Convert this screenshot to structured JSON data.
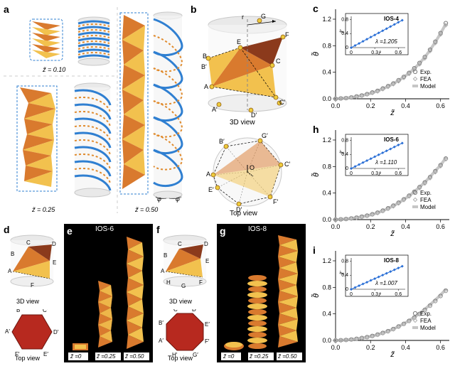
{
  "figure_width": 640,
  "figure_height": 515,
  "colors": {
    "origami_orange": "#d97a2e",
    "origami_yellow": "#f2c14e",
    "origami_dark": "#8b3a1c",
    "helix_blue": "#2f7fd1",
    "helix_orange_dash": "#e08a2b",
    "cylinder_fill": "#e9e9e9",
    "cylinder_edge": "#c8c8c8",
    "chart_exp": "#7a7a7a",
    "chart_fea": "#b0b0b0",
    "chart_model": "#b8b8b8",
    "chart_inset_blue": "#2a6fd6",
    "black": "#000000",
    "white": "#ffffff",
    "divider": "#cccccc",
    "polygon_fill": "#b7291f",
    "node_fill": "#eecb3c",
    "node_stroke": "#8c5a14"
  },
  "panels": {
    "a": {
      "label": "a",
      "captions": {
        "z010": "z̃ = 0.10",
        "z025": "z̃ = 0.25",
        "z050": "z̃ = 0.50"
      },
      "angles": {
        "phi": "φ",
        "phiprime": "φ′"
      }
    },
    "b": {
      "label": "b",
      "view3d": "3D view",
      "topview": "Top view",
      "radius_label": "r",
      "vertex_labels": [
        "A",
        "B",
        "C",
        "D",
        "E",
        "F",
        "G",
        "A′",
        "B′",
        "C′",
        "D′"
      ],
      "top_labels": [
        "A",
        "B′",
        "C′",
        "D′",
        "E′",
        "F′",
        "G′"
      ]
    },
    "d": {
      "label": "d",
      "view3d": "3D view",
      "topview": "Top view",
      "vertex_labels": [
        "A",
        "B",
        "C",
        "D",
        "E",
        "F"
      ],
      "prime_labels": [
        "A′",
        "B′",
        "C′",
        "D′",
        "E′",
        "F′"
      ]
    },
    "e": {
      "label": "e",
      "title": "IOS-6",
      "ticks": [
        "z̃ =0",
        "z̃ =0.25",
        "z̃ =0.50"
      ]
    },
    "f": {
      "label": "f",
      "view3d": "3D view",
      "topview": "Top view",
      "vertex_labels": [
        "A",
        "B",
        "C",
        "D",
        "E",
        "F",
        "G",
        "H"
      ],
      "prime_labels": [
        "A′",
        "B′",
        "C′",
        "D′",
        "E′",
        "F′",
        "G′",
        "H′"
      ]
    },
    "g": {
      "label": "g",
      "title": "IOS-8",
      "ticks": [
        "z̃ =0",
        "z̃ =0.25",
        "z̃ =0.50"
      ]
    },
    "c": {
      "label": "c",
      "chart": {
        "type": "scatter-with-model",
        "title": "IOS-4",
        "xlabel": "z̃",
        "ylabel": "θ̃",
        "xlim": [
          0,
          0.65
        ],
        "xticks": [
          0,
          0.2,
          0.4,
          0.6
        ],
        "ylim": [
          0,
          1.35
        ],
        "yticks": [
          0,
          0.4,
          0.8,
          1.2
        ],
        "x": [
          0,
          0.03,
          0.06,
          0.09,
          0.12,
          0.15,
          0.18,
          0.21,
          0.24,
          0.27,
          0.3,
          0.33,
          0.36,
          0.39,
          0.42,
          0.45,
          0.48,
          0.51,
          0.54,
          0.57,
          0.6,
          0.63
        ],
        "exp_y": [
          0,
          0.005,
          0.01,
          0.02,
          0.035,
          0.05,
          0.07,
          0.095,
          0.12,
          0.155,
          0.19,
          0.23,
          0.28,
          0.33,
          0.39,
          0.46,
          0.54,
          0.63,
          0.74,
          0.86,
          0.99,
          1.14
        ],
        "fea_y": [
          0,
          0.004,
          0.009,
          0.018,
          0.03,
          0.046,
          0.065,
          0.088,
          0.112,
          0.145,
          0.18,
          0.22,
          0.265,
          0.315,
          0.375,
          0.44,
          0.52,
          0.61,
          0.72,
          0.84,
          0.97,
          1.11
        ],
        "model_y": [
          0,
          0.005,
          0.011,
          0.02,
          0.033,
          0.048,
          0.068,
          0.09,
          0.118,
          0.15,
          0.187,
          0.228,
          0.275,
          0.327,
          0.387,
          0.455,
          0.535,
          0.625,
          0.735,
          0.855,
          0.985,
          1.13
        ],
        "inset": {
          "lambda": "λ =1.205",
          "xlim": [
            0,
            0.67
          ],
          "ylim": [
            0,
            0.85
          ],
          "xticks": [
            0,
            0.3,
            0.6
          ],
          "yticks": [
            0,
            0.4,
            0.8
          ],
          "xlabel": "z̃",
          "ylabel": "z̃′",
          "x": [
            0,
            0.05,
            0.1,
            0.15,
            0.2,
            0.25,
            0.3,
            0.35,
            0.4,
            0.45,
            0.5,
            0.55,
            0.6,
            0.65
          ],
          "y": [
            0,
            0.06,
            0.12,
            0.18,
            0.24,
            0.3,
            0.36,
            0.42,
            0.48,
            0.54,
            0.6,
            0.66,
            0.72,
            0.78
          ]
        },
        "legend": {
          "exp": "Exp.",
          "fea": "FEA",
          "model": "Model"
        }
      }
    },
    "h": {
      "label": "h",
      "chart": {
        "type": "scatter-with-model",
        "title": "IOS-6",
        "xlabel": "z̃",
        "ylabel": "θ̃",
        "xlim": [
          0,
          0.65
        ],
        "xticks": [
          0,
          0.2,
          0.4,
          0.6
        ],
        "ylim": [
          0,
          1.35
        ],
        "yticks": [
          0,
          0.4,
          0.8,
          1.2
        ],
        "x": [
          0,
          0.03,
          0.06,
          0.09,
          0.12,
          0.15,
          0.18,
          0.21,
          0.24,
          0.27,
          0.3,
          0.33,
          0.36,
          0.39,
          0.42,
          0.45,
          0.48,
          0.51,
          0.54,
          0.57,
          0.6,
          0.63
        ],
        "exp_y": [
          0,
          0.004,
          0.009,
          0.018,
          0.03,
          0.045,
          0.06,
          0.08,
          0.105,
          0.135,
          0.17,
          0.21,
          0.255,
          0.305,
          0.36,
          0.42,
          0.49,
          0.56,
          0.64,
          0.73,
          0.82,
          0.92
        ],
        "fea_y": [
          0,
          0.004,
          0.008,
          0.016,
          0.027,
          0.04,
          0.055,
          0.075,
          0.098,
          0.128,
          0.162,
          0.2,
          0.245,
          0.295,
          0.35,
          0.41,
          0.475,
          0.545,
          0.625,
          0.715,
          0.805,
          0.91
        ],
        "model_y": [
          0,
          0.004,
          0.009,
          0.018,
          0.029,
          0.043,
          0.058,
          0.078,
          0.102,
          0.132,
          0.168,
          0.207,
          0.252,
          0.302,
          0.358,
          0.42,
          0.49,
          0.563,
          0.645,
          0.735,
          0.82,
          0.93
        ],
        "inset": {
          "lambda": "λ =1.110",
          "xlim": [
            0,
            0.67
          ],
          "ylim": [
            0,
            0.85
          ],
          "xticks": [
            0,
            0.3,
            0.6
          ],
          "yticks": [
            0,
            0.4,
            0.8
          ],
          "xlabel": "z̃",
          "ylabel": "z̃′",
          "x": [
            0,
            0.05,
            0.1,
            0.15,
            0.2,
            0.25,
            0.3,
            0.35,
            0.4,
            0.45,
            0.5,
            0.55,
            0.6,
            0.65
          ],
          "y": [
            0,
            0.056,
            0.111,
            0.167,
            0.222,
            0.278,
            0.333,
            0.389,
            0.444,
            0.5,
            0.555,
            0.611,
            0.667,
            0.722
          ]
        },
        "legend": {
          "exp": "Exp.",
          "fea": "FEA",
          "model": "Model"
        }
      }
    },
    "i": {
      "label": "i",
      "chart": {
        "type": "scatter-with-model",
        "title": "IOS-8",
        "xlabel": "z̃",
        "ylabel": "θ̃",
        "xlim": [
          0,
          0.65
        ],
        "xticks": [
          0,
          0.2,
          0.4,
          0.6
        ],
        "ylim": [
          0,
          1.35
        ],
        "yticks": [
          0,
          0.4,
          0.8,
          1.2
        ],
        "x": [
          0,
          0.03,
          0.06,
          0.09,
          0.12,
          0.15,
          0.18,
          0.21,
          0.24,
          0.27,
          0.3,
          0.33,
          0.36,
          0.39,
          0.42,
          0.45,
          0.48,
          0.51,
          0.54,
          0.57,
          0.6,
          0.63
        ],
        "exp_y": [
          0,
          0.003,
          0.007,
          0.014,
          0.024,
          0.036,
          0.05,
          0.067,
          0.088,
          0.113,
          0.14,
          0.172,
          0.21,
          0.25,
          0.295,
          0.345,
          0.4,
          0.46,
          0.525,
          0.595,
          0.67,
          0.75
        ],
        "fea_y": [
          0,
          0.003,
          0.006,
          0.012,
          0.022,
          0.033,
          0.047,
          0.063,
          0.084,
          0.108,
          0.135,
          0.167,
          0.205,
          0.246,
          0.29,
          0.34,
          0.395,
          0.455,
          0.52,
          0.59,
          0.665,
          0.745
        ],
        "model_y": [
          0,
          0.003,
          0.007,
          0.014,
          0.024,
          0.035,
          0.049,
          0.066,
          0.087,
          0.112,
          0.14,
          0.172,
          0.21,
          0.252,
          0.298,
          0.35,
          0.408,
          0.47,
          0.538,
          0.61,
          0.685,
          0.77
        ],
        "inset": {
          "lambda": "λ =1.007",
          "xlim": [
            0,
            0.67
          ],
          "ylim": [
            0,
            0.85
          ],
          "xticks": [
            0,
            0.3,
            0.6
          ],
          "yticks": [
            0,
            0.4,
            0.8
          ],
          "xlabel": "z̃",
          "ylabel": "z̃′",
          "x": [
            0,
            0.05,
            0.1,
            0.15,
            0.2,
            0.25,
            0.3,
            0.35,
            0.4,
            0.45,
            0.5,
            0.55,
            0.6,
            0.65
          ],
          "y": [
            0,
            0.05,
            0.101,
            0.151,
            0.201,
            0.252,
            0.302,
            0.352,
            0.403,
            0.453,
            0.503,
            0.554,
            0.604,
            0.654
          ]
        },
        "legend": {
          "exp": "Exp.",
          "fea": "FEA",
          "model": "Model"
        }
      }
    }
  }
}
